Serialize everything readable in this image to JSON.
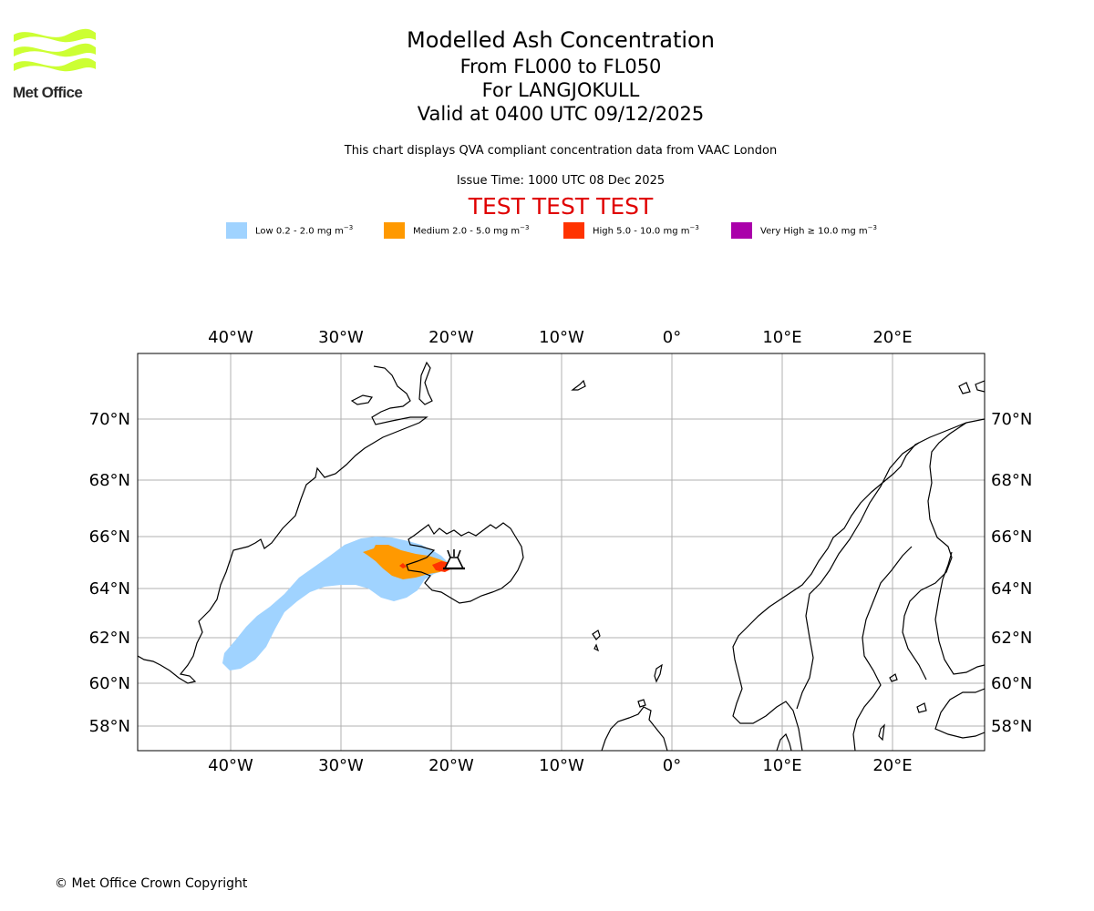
{
  "logo": {
    "text": "Met Office",
    "color": "#ccff33"
  },
  "title": {
    "line1": "Modelled Ash Concentration",
    "line2": "From FL000 to FL050",
    "line3": "For LANGJOKULL",
    "line4": "Valid at 0400 UTC 09/12/2025"
  },
  "subtitle": "This chart displays QVA compliant concentration data from VAAC London",
  "issue_time": "Issue Time: 1000 UTC 08 Dec 2025",
  "test_banner": "TEST TEST TEST",
  "legend": [
    {
      "label": "Low 0.2 - 2.0 mg m",
      "color": "#a0d3ff"
    },
    {
      "label": "Medium 2.0 - 5.0 mg m",
      "color": "#ff9900"
    },
    {
      "label": "High 5.0 - 10.0 mg m",
      "color": "#ff3300"
    },
    {
      "label": "Very High  ≥  10.0 mg m",
      "color": "#aa00aa"
    }
  ],
  "legend_unit_exp": "−3",
  "map": {
    "lon_ticks": [
      "40°W",
      "30°W",
      "20°W",
      "10°W",
      "0°",
      "10°E",
      "20°E"
    ],
    "lat_ticks": [
      "70°N",
      "68°N",
      "66°N",
      "64°N",
      "62°N",
      "60°N",
      "58°N"
    ],
    "volcano_icon": "volcano-icon",
    "grid": true
  },
  "copyright": "© Met Office Crown Copyright"
}
